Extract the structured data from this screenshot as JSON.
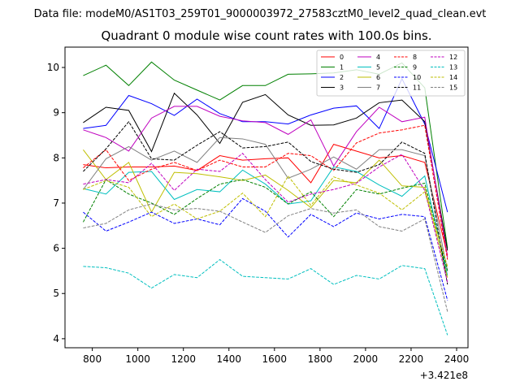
{
  "header": {
    "suptitle": "Data file: modeM0/AS1T03_259T01_9000003972_27583cztM0_level2_quad_clean.evt"
  },
  "chart_data": {
    "type": "line",
    "title": "Quadrant 0 module wise count rates with 100.0s bins.",
    "xlabel": "",
    "ylabel": "",
    "x_offset_label": "+3.421e8",
    "xlim": [
      680,
      2450
    ],
    "ylim": [
      3.8,
      10.45
    ],
    "x_ticks": [
      800,
      1000,
      1200,
      1400,
      1600,
      1800,
      2000,
      2200,
      2400
    ],
    "y_ticks": [
      4,
      5,
      6,
      7,
      8,
      9,
      10
    ],
    "grid": false,
    "legend_position": "top-right",
    "x": [
      760,
      860,
      960,
      1060,
      1160,
      1260,
      1360,
      1460,
      1560,
      1660,
      1760,
      1860,
      1960,
      2060,
      2160,
      2260,
      2360
    ],
    "series": [
      {
        "name": "0",
        "color": "#ff0000",
        "dash": "solid",
        "values": [
          7.85,
          7.78,
          7.8,
          7.8,
          7.82,
          7.72,
          8.05,
          7.95,
          7.98,
          8.0,
          7.45,
          8.3,
          8.15,
          8.0,
          8.05,
          7.9,
          5.85
        ]
      },
      {
        "name": "1",
        "color": "#008000",
        "dash": "solid",
        "values": [
          9.82,
          10.05,
          9.6,
          10.12,
          9.72,
          9.5,
          9.28,
          9.6,
          9.6,
          9.85,
          9.86,
          9.88,
          9.95,
          9.85,
          10.1,
          9.55,
          6.0
        ]
      },
      {
        "name": "2",
        "color": "#0000ff",
        "dash": "solid",
        "values": [
          8.65,
          8.72,
          9.38,
          9.2,
          8.94,
          9.3,
          8.98,
          8.8,
          8.8,
          8.75,
          8.95,
          9.1,
          9.15,
          8.65,
          9.75,
          8.75,
          6.8
        ]
      },
      {
        "name": "3",
        "color": "#000000",
        "dash": "solid",
        "values": [
          8.78,
          9.12,
          9.05,
          8.14,
          9.43,
          8.95,
          8.32,
          9.23,
          9.4,
          8.95,
          8.72,
          8.73,
          8.88,
          9.22,
          9.28,
          8.8,
          5.95
        ]
      },
      {
        "name": "4",
        "color": "#bf00bf",
        "dash": "solid",
        "values": [
          8.62,
          8.45,
          8.15,
          8.88,
          9.14,
          9.14,
          8.92,
          8.82,
          8.78,
          8.52,
          8.84,
          7.82,
          8.58,
          9.12,
          8.8,
          8.9,
          5.8
        ]
      },
      {
        "name": "5",
        "color": "#00bfbf",
        "dash": "solid",
        "values": [
          7.32,
          7.2,
          7.68,
          7.7,
          7.08,
          7.3,
          7.25,
          7.73,
          7.42,
          6.98,
          7.05,
          7.8,
          7.7,
          7.4,
          7.15,
          7.6,
          5.4
        ]
      },
      {
        "name": "6",
        "color": "#bfbf00",
        "dash": "solid",
        "values": [
          8.18,
          7.52,
          7.9,
          6.8,
          7.68,
          7.65,
          7.58,
          7.5,
          7.62,
          7.28,
          6.9,
          7.5,
          7.45,
          7.95,
          7.38,
          7.35,
          5.35
        ]
      },
      {
        "name": "7",
        "color": "#808080",
        "dash": "solid",
        "values": [
          7.3,
          7.98,
          8.25,
          7.95,
          8.15,
          7.9,
          8.45,
          8.42,
          8.3,
          7.55,
          7.75,
          8.02,
          7.75,
          8.18,
          8.18,
          8.05,
          5.5
        ]
      },
      {
        "name": "8",
        "color": "#ff0000",
        "dash": "dashed",
        "values": [
          7.78,
          8.18,
          7.5,
          7.75,
          7.9,
          7.72,
          7.95,
          7.8,
          7.8,
          8.1,
          8.05,
          7.72,
          8.33,
          8.55,
          8.62,
          8.72,
          5.75
        ]
      },
      {
        "name": "9",
        "color": "#008000",
        "dash": "dashed",
        "values": [
          6.58,
          7.52,
          7.2,
          7.0,
          6.75,
          7.1,
          7.42,
          7.52,
          7.35,
          6.98,
          7.25,
          6.7,
          7.3,
          7.2,
          7.33,
          7.44,
          5.5
        ]
      },
      {
        "name": "10",
        "color": "#0000ff",
        "dash": "dashed",
        "values": [
          6.8,
          6.38,
          6.58,
          6.8,
          6.55,
          6.65,
          6.52,
          7.1,
          6.82,
          6.25,
          6.75,
          6.48,
          6.78,
          6.65,
          6.75,
          6.7,
          4.85
        ]
      },
      {
        "name": "11",
        "color": "#000000",
        "dash": "dashed",
        "values": [
          7.7,
          8.2,
          8.8,
          7.98,
          7.95,
          8.28,
          8.58,
          8.22,
          8.25,
          8.35,
          7.92,
          7.75,
          7.68,
          7.85,
          8.35,
          8.1,
          5.2
        ]
      },
      {
        "name": "12",
        "color": "#bf00bf",
        "dash": "dashed",
        "values": [
          7.42,
          7.52,
          7.45,
          7.88,
          7.28,
          7.75,
          7.7,
          8.1,
          7.52,
          7.02,
          7.2,
          7.3,
          7.44,
          7.8,
          8.08,
          7.28,
          5.25
        ]
      },
      {
        "name": "13",
        "color": "#00bfbf",
        "dash": "dashed",
        "values": [
          5.6,
          5.57,
          5.45,
          5.12,
          5.42,
          5.35,
          5.75,
          5.38,
          5.35,
          5.32,
          5.55,
          5.2,
          5.4,
          5.32,
          5.62,
          5.55,
          4.08
        ]
      },
      {
        "name": "14",
        "color": "#bfbf00",
        "dash": "dashed",
        "values": [
          7.3,
          7.5,
          7.35,
          6.7,
          6.98,
          6.65,
          6.82,
          7.22,
          6.7,
          7.6,
          6.95,
          7.58,
          7.4,
          7.22,
          6.85,
          7.25,
          5.6
        ]
      },
      {
        "name": "15",
        "color": "#808080",
        "dash": "dashed",
        "values": [
          6.45,
          6.55,
          6.85,
          6.98,
          6.85,
          6.88,
          6.82,
          6.58,
          6.35,
          6.72,
          6.88,
          6.78,
          6.85,
          6.48,
          6.38,
          6.65,
          4.6
        ]
      }
    ]
  }
}
